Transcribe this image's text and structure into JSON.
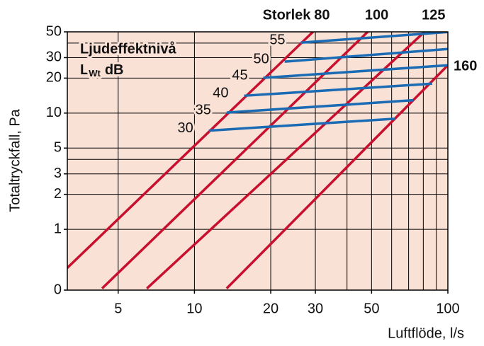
{
  "chart_data": {
    "type": "line",
    "x_label": "Luftflöde, l/s",
    "y_label": "Totaltryckfall, Pa",
    "size_label": "Storlek",
    "legend_title": "Ljudeffektnivå",
    "legend_unit": {
      "main": "L",
      "sub": "Wt",
      "unit": "dB"
    },
    "log_x": true,
    "log_y": true,
    "grid": true,
    "background": "#f9e1d6",
    "xlim": [
      3.15,
      100
    ],
    "xticks": [
      5,
      10,
      20,
      30,
      50,
      100
    ],
    "xminor": [
      40,
      60,
      70,
      80,
      90
    ],
    "ylim": [
      0.3,
      50
    ],
    "yticks": [
      {
        "value": 0.3,
        "label": "0"
      },
      1,
      2,
      3,
      5,
      10,
      20,
      30,
      50
    ],
    "yminor": [
      4,
      40
    ],
    "series": [
      {
        "name": "80",
        "group": "size",
        "color": "#c8102e",
        "x": [
          3.13,
          29.5
        ],
        "values": [
          0.46,
          50.5
        ]
      },
      {
        "name": "100",
        "group": "size",
        "color": "#c8102e",
        "x": [
          4.32,
          48.5
        ],
        "values": [
          0.31,
          50.5
        ]
      },
      {
        "name": "125",
        "group": "size",
        "color": "#c8102e",
        "x": [
          6.49,
          81.3
        ],
        "values": [
          0.31,
          50.5
        ]
      },
      {
        "name": "160",
        "group": "size",
        "color": "#c8102e",
        "x": [
          13.4,
          100
        ],
        "values": [
          0.31,
          25.8
        ]
      },
      {
        "name": "55",
        "group": "sound",
        "color": "#1a6bb3",
        "x": [
          26.3,
          100
        ],
        "values": [
          40.4,
          49.8
        ]
      },
      {
        "name": "50",
        "group": "sound",
        "color": "#1a6bb3",
        "x": [
          22.7,
          100
        ],
        "values": [
          27.7,
          35.6
        ]
      },
      {
        "name": "45",
        "group": "sound",
        "color": "#1a6bb3",
        "x": [
          18.7,
          100
        ],
        "values": [
          20.1,
          25.8
        ]
      },
      {
        "name": "40",
        "group": "sound",
        "color": "#1a6bb3",
        "x": [
          15.7,
          86.7
        ],
        "values": [
          14.1,
          17.9
        ]
      },
      {
        "name": "35",
        "group": "sound",
        "color": "#1a6bb3",
        "x": [
          13.4,
          73.0
        ],
        "values": [
          10.1,
          12.9
        ]
      },
      {
        "name": "30",
        "group": "sound",
        "color": "#1a6bb3",
        "x": [
          11.4,
          62.1
        ],
        "values": [
          7.06,
          8.95
        ]
      }
    ]
  }
}
